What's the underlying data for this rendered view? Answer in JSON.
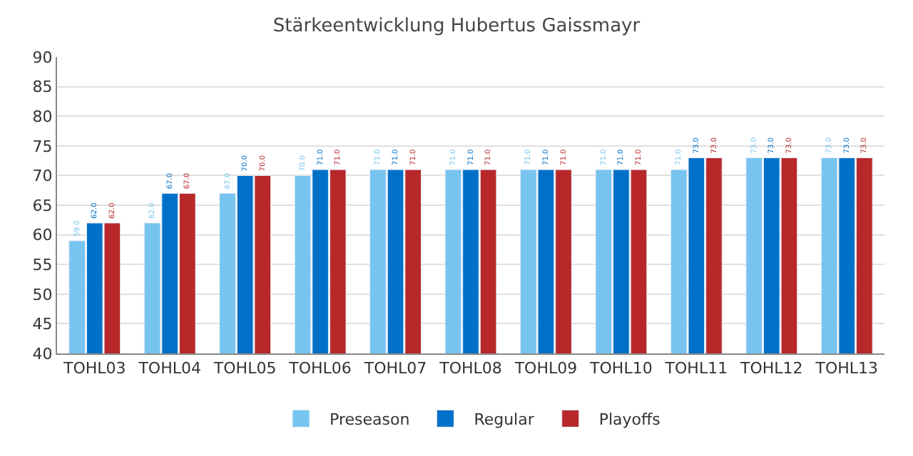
{
  "chart_data": {
    "type": "bar",
    "title": "Stärkeentwicklung Hubertus Gaissmayr",
    "categories": [
      "TOHL03",
      "TOHL04",
      "TOHL05",
      "TOHL06",
      "TOHL07",
      "TOHL08",
      "TOHL09",
      "TOHL10",
      "TOHL11",
      "TOHL12",
      "TOHL13"
    ],
    "series": [
      {
        "name": "Preseason",
        "color": "#77c4f0",
        "values": [
          59,
          62,
          67,
          70,
          71,
          71,
          71,
          71,
          71,
          73,
          73
        ],
        "value_labels": [
          "59.0",
          "62.0",
          "67.0",
          "70.0",
          "71.0",
          "71.0",
          "71.0",
          "71.0",
          "71.0",
          "73.0",
          "73.0"
        ]
      },
      {
        "name": "Regular",
        "color": "#0070c8",
        "values": [
          62,
          67,
          70,
          71,
          71,
          71,
          71,
          71,
          73,
          73,
          73
        ],
        "value_labels": [
          "62.0",
          "67.0",
          "70.0",
          "71.0",
          "71.0",
          "71.0",
          "71.0",
          "71.0",
          "73.0",
          "73.0",
          "73.0"
        ]
      },
      {
        "name": "Playoffs",
        "color": "#b8282a",
        "values": [
          62,
          67,
          70,
          71,
          71,
          71,
          71,
          71,
          73,
          73,
          73
        ],
        "value_labels": [
          "62.0",
          "67.0",
          "70.0",
          "71.0",
          "71.0",
          "71.0",
          "71.0",
          "71.0",
          "73.0",
          "73.0",
          "73.0"
        ]
      }
    ],
    "ylim": [
      40,
      90
    ],
    "yticks": [
      40,
      45,
      50,
      55,
      60,
      65,
      70,
      75,
      80,
      85,
      90
    ],
    "grid": "y",
    "legend": "bottom"
  }
}
